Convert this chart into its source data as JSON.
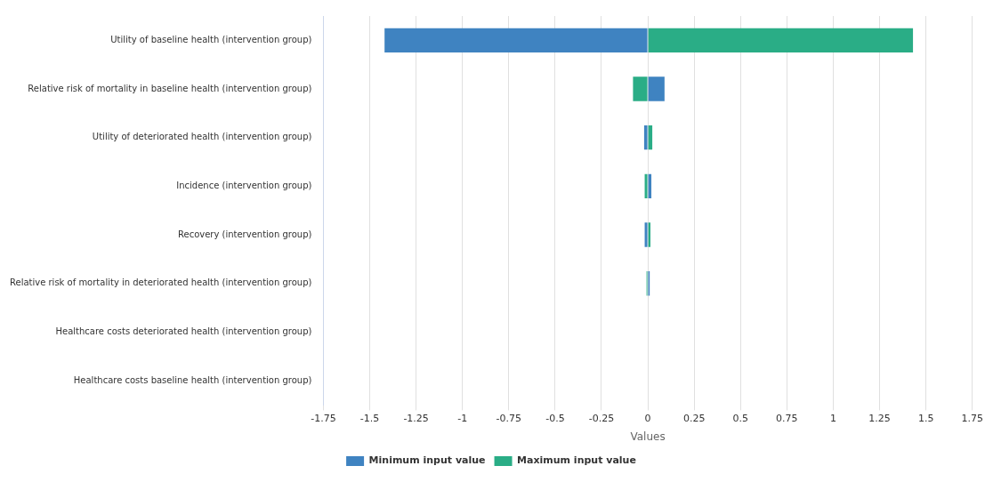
{
  "chart_data": {
    "type": "bar",
    "orientation": "horizontal",
    "stacked": true,
    "xlabel": "Values",
    "categories": [
      "Utility of baseline health (intervention group)",
      "Relative risk of mortality in baseline health (intervention group)",
      "Utility of deteriorated health (intervention group)",
      "Incidence (intervention group)",
      "Recovery (intervention group)",
      "Relative risk of mortality in deteriorated health (intervention group)",
      "Healthcare costs deteriorated health (intervention group)",
      "Healthcare costs baseline health (intervention group)"
    ],
    "series": [
      {
        "name": "Minimum input value",
        "color": "#3f83c1",
        "values": [
          -1.42,
          0.09,
          -0.02,
          0.019,
          -0.017,
          0.01,
          0,
          0
        ]
      },
      {
        "name": "Maximum input value",
        "color": "#2aad86",
        "values": [
          1.43,
          -0.08,
          0.024,
          -0.017,
          0.014,
          -0.007,
          0,
          0
        ]
      }
    ],
    "xlim": [
      -1.75,
      1.75
    ],
    "xticks": [
      -1.75,
      -1.5,
      -1.25,
      -1,
      -0.75,
      -0.5,
      -0.25,
      0,
      0.25,
      0.5,
      0.75,
      1,
      1.25,
      1.5,
      1.75
    ],
    "grid": "x",
    "legend": "bottom"
  }
}
